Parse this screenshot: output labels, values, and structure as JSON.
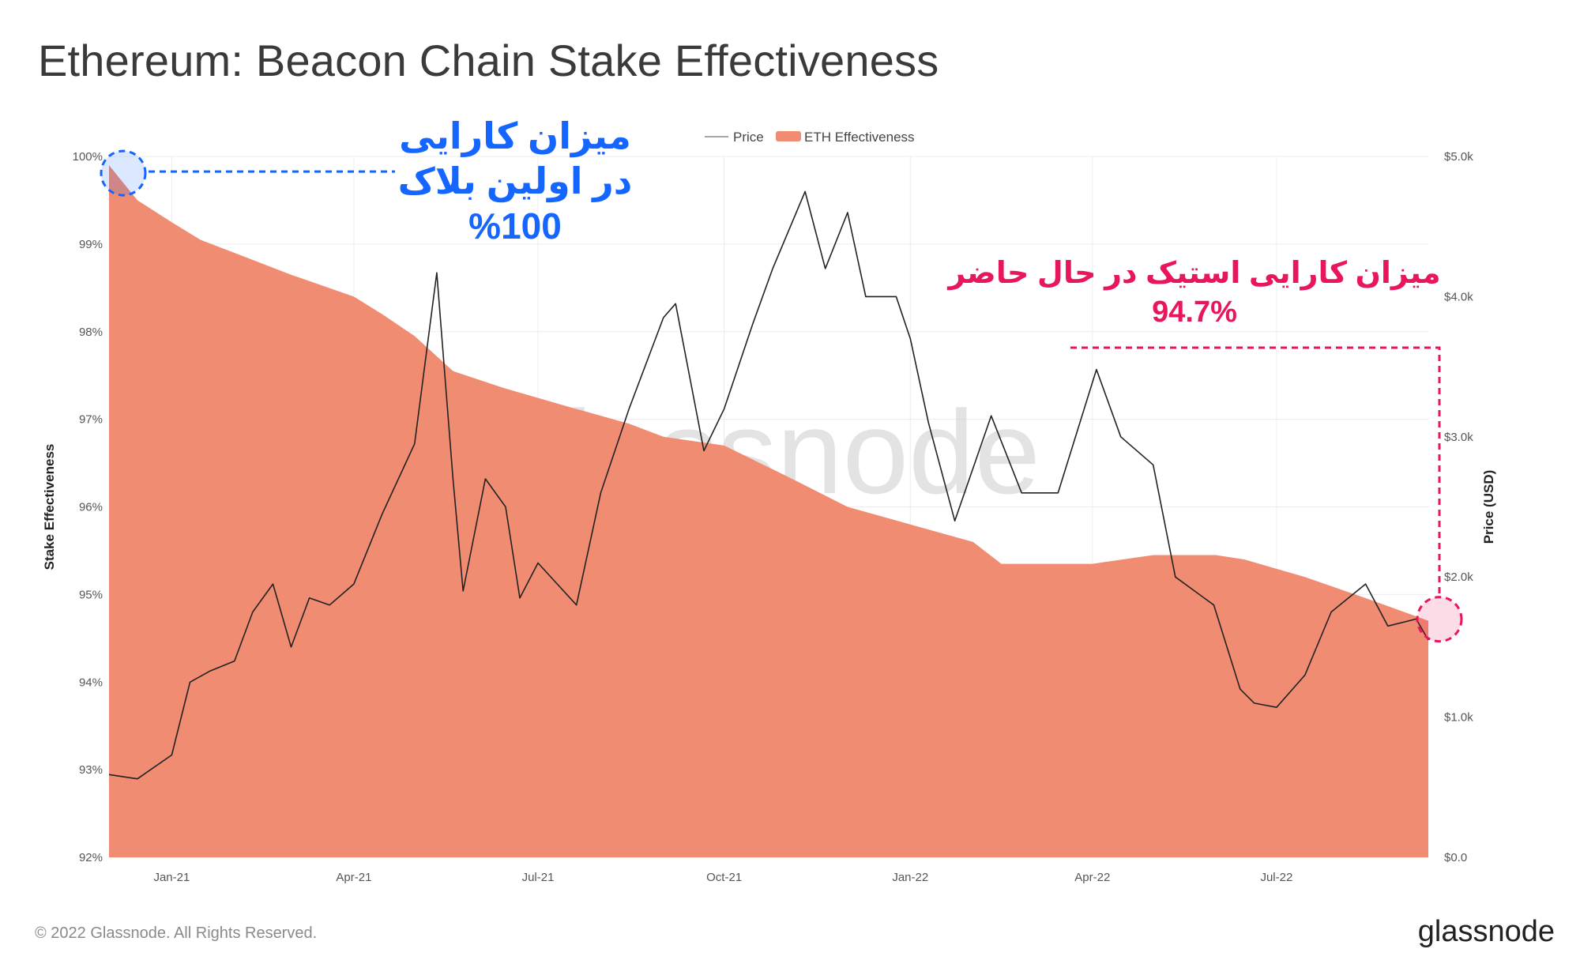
{
  "page": {
    "title": "Ethereum: Beacon Chain Stake Effectiveness",
    "copyright": "© 2022 Glassnode. All Rights Reserved.",
    "brand": "glassnode",
    "watermark": "glassnode"
  },
  "annotations": {
    "first_block": [
      "میزان کارایی",
      "در اولین بلاک",
      "%100"
    ],
    "current": [
      "میزان کارایی استیک در حال حاضر",
      "94.7%"
    ],
    "first_color": "#1565ff",
    "current_color": "#e8175d"
  },
  "chart_data": {
    "type": "area",
    "legend": [
      "Price",
      "ETH Effectiveness"
    ],
    "legend_position": "top-center",
    "grid": true,
    "colors": {
      "effectiveness": "#f08c72",
      "price": "#222222"
    },
    "x_ticks": [
      "Jan-21",
      "Apr-21",
      "Jul-21",
      "Oct-21",
      "Jan-22",
      "Apr-22",
      "Jul-22"
    ],
    "x_tick_dates": [
      "2021-01-01",
      "2021-04-01",
      "2021-07-01",
      "2021-10-01",
      "2022-01-01",
      "2022-04-01",
      "2022-07-01"
    ],
    "xlim": [
      "2020-12-01",
      "2022-09-14"
    ],
    "y_left": {
      "label": "Stake Effectiveness",
      "ticks": [
        "92%",
        "93%",
        "94%",
        "95%",
        "96%",
        "97%",
        "98%",
        "99%",
        "100%"
      ],
      "lim": [
        92,
        100
      ]
    },
    "y_right": {
      "label": "Price (USD)",
      "ticks": [
        "$0.0",
        "$1.0k",
        "$2.0k",
        "$3.0k",
        "$4.0k",
        "$5.0k"
      ],
      "lim": [
        0,
        5000
      ]
    },
    "series": [
      {
        "name": "ETH Effectiveness",
        "points": [
          [
            "2020-12-01",
            99.9
          ],
          [
            "2020-12-15",
            99.5
          ],
          [
            "2021-01-01",
            99.25
          ],
          [
            "2021-01-15",
            99.05
          ],
          [
            "2021-02-01",
            98.9
          ],
          [
            "2021-03-01",
            98.65
          ],
          [
            "2021-04-01",
            98.4
          ],
          [
            "2021-04-15",
            98.2
          ],
          [
            "2021-05-01",
            97.95
          ],
          [
            "2021-05-20",
            97.55
          ],
          [
            "2021-06-15",
            97.35
          ],
          [
            "2021-07-15",
            97.15
          ],
          [
            "2021-08-15",
            96.95
          ],
          [
            "2021-09-01",
            96.8
          ],
          [
            "2021-10-01",
            96.7
          ],
          [
            "2021-11-01",
            96.35
          ],
          [
            "2021-12-01",
            96.0
          ],
          [
            "2022-01-01",
            95.8
          ],
          [
            "2022-02-01",
            95.6
          ],
          [
            "2022-02-15",
            95.35
          ],
          [
            "2022-04-01",
            95.35
          ],
          [
            "2022-05-01",
            95.45
          ],
          [
            "2022-06-01",
            95.45
          ],
          [
            "2022-06-15",
            95.4
          ],
          [
            "2022-07-15",
            95.2
          ],
          [
            "2022-08-15",
            94.95
          ],
          [
            "2022-09-14",
            94.7
          ]
        ]
      },
      {
        "name": "Price",
        "points": [
          [
            "2020-12-01",
            590
          ],
          [
            "2020-12-15",
            560
          ],
          [
            "2021-01-01",
            730
          ],
          [
            "2021-01-10",
            1250
          ],
          [
            "2021-01-20",
            1330
          ],
          [
            "2021-02-01",
            1400
          ],
          [
            "2021-02-10",
            1750
          ],
          [
            "2021-02-20",
            1950
          ],
          [
            "2021-03-01",
            1500
          ],
          [
            "2021-03-10",
            1850
          ],
          [
            "2021-03-20",
            1800
          ],
          [
            "2021-04-01",
            1950
          ],
          [
            "2021-04-15",
            2450
          ],
          [
            "2021-05-01",
            2950
          ],
          [
            "2021-05-12",
            4170
          ],
          [
            "2021-05-20",
            2700
          ],
          [
            "2021-05-25",
            1900
          ],
          [
            "2021-06-05",
            2700
          ],
          [
            "2021-06-15",
            2500
          ],
          [
            "2021-06-22",
            1850
          ],
          [
            "2021-07-01",
            2100
          ],
          [
            "2021-07-20",
            1800
          ],
          [
            "2021-08-01",
            2600
          ],
          [
            "2021-08-15",
            3200
          ],
          [
            "2021-09-01",
            3850
          ],
          [
            "2021-09-07",
            3950
          ],
          [
            "2021-09-21",
            2900
          ],
          [
            "2021-10-01",
            3200
          ],
          [
            "2021-10-15",
            3800
          ],
          [
            "2021-10-25",
            4200
          ],
          [
            "2021-11-10",
            4750
          ],
          [
            "2021-11-20",
            4200
          ],
          [
            "2021-12-01",
            4600
          ],
          [
            "2021-12-10",
            4000
          ],
          [
            "2021-12-25",
            4000
          ],
          [
            "2022-01-01",
            3700
          ],
          [
            "2022-01-10",
            3100
          ],
          [
            "2022-01-23",
            2400
          ],
          [
            "2022-02-10",
            3150
          ],
          [
            "2022-02-25",
            2600
          ],
          [
            "2022-03-15",
            2600
          ],
          [
            "2022-04-03",
            3480
          ],
          [
            "2022-04-15",
            3000
          ],
          [
            "2022-05-01",
            2800
          ],
          [
            "2022-05-12",
            2000
          ],
          [
            "2022-05-31",
            1800
          ],
          [
            "2022-06-13",
            1200
          ],
          [
            "2022-06-20",
            1100
          ],
          [
            "2022-07-01",
            1070
          ],
          [
            "2022-07-15",
            1300
          ],
          [
            "2022-07-28",
            1750
          ],
          [
            "2022-08-14",
            1950
          ],
          [
            "2022-08-25",
            1650
          ],
          [
            "2022-09-08",
            1700
          ],
          [
            "2022-09-14",
            1550
          ]
        ]
      }
    ]
  }
}
